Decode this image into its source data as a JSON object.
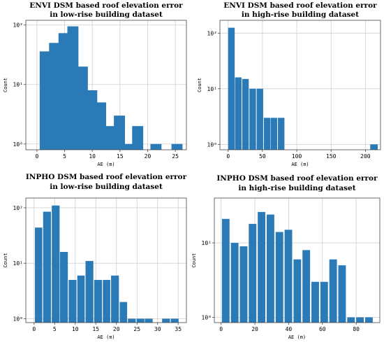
{
  "chart_data": [
    {
      "type": "bar",
      "title": [
        "ENVI DSM based roof elevation error",
        "in low-rise building dataset"
      ],
      "xlabel": "AE (m)",
      "ylabel": "Count",
      "yscale": "log",
      "grid": true,
      "xlim": [
        -2,
        27
      ],
      "ylim": [
        0.8,
        120
      ],
      "xticks": [
        0,
        5,
        10,
        15,
        20,
        25
      ],
      "yticks": [
        {
          "v": 1,
          "label": "10⁰"
        },
        {
          "v": 10,
          "label": "10¹"
        },
        {
          "v": 100,
          "label": "10²"
        }
      ],
      "bins": [
        [
          0.5,
          2.5
        ],
        [
          2.2,
          4.2
        ],
        [
          3.9,
          5.9
        ],
        [
          5.5,
          7.5
        ],
        [
          7.2,
          9.2
        ],
        [
          8.9,
          10.9
        ],
        [
          10.5,
          12.5
        ],
        [
          12.2,
          14.2
        ],
        [
          13.9,
          15.9
        ],
        [
          15.5,
          17.5
        ],
        [
          17.2,
          19.2
        ],
        [
          20.5,
          22.5
        ],
        [
          24.3,
          26.3
        ]
      ],
      "values": [
        36,
        50,
        73,
        95,
        20,
        8,
        5,
        2,
        3,
        1,
        2,
        1,
        1
      ]
    },
    {
      "type": "bar",
      "title": [
        "ENVI DSM based roof elevation error",
        "in high-rise building dataset"
      ],
      "xlabel": "AE (m)",
      "ylabel": "Count",
      "yscale": "log",
      "grid": true,
      "xlim": [
        -12,
        222
      ],
      "ylim": [
        0.8,
        170
      ],
      "xticks": [
        0,
        50,
        100,
        150,
        200
      ],
      "yticks": [
        {
          "v": 1,
          "label": "10⁰"
        },
        {
          "v": 10,
          "label": "10¹"
        },
        {
          "v": 100,
          "label": "10²"
        }
      ],
      "bins": [
        [
          0,
          9.5
        ],
        [
          10,
          19.5
        ],
        [
          20.5,
          30
        ],
        [
          31,
          40.5
        ],
        [
          41.5,
          51
        ],
        [
          52,
          61.5
        ],
        [
          62,
          71.5
        ],
        [
          72.5,
          82
        ],
        [
          207,
          218
        ]
      ],
      "values": [
        125,
        16,
        15,
        10,
        10,
        3,
        3,
        3,
        1
      ]
    },
    {
      "type": "bar",
      "title": [
        "INPHO DSM based roof elevation error",
        "in low-rise building dataset"
      ],
      "xlabel": "AE (m)",
      "ylabel": "Count",
      "yscale": "log",
      "grid": true,
      "xlim": [
        -2,
        37
      ],
      "ylim": [
        0.85,
        150
      ],
      "xticks": [
        0,
        5,
        10,
        15,
        20,
        25,
        30,
        35
      ],
      "yticks": [
        {
          "v": 1,
          "label": "10⁰"
        },
        {
          "v": 10,
          "label": "10¹"
        },
        {
          "v": 100,
          "label": "10²"
        }
      ],
      "bins": [
        [
          0.2,
          2
        ],
        [
          2.2,
          4.1
        ],
        [
          4.3,
          6.2
        ],
        [
          6.3,
          8.2
        ],
        [
          8.4,
          10.3
        ],
        [
          10.5,
          12.3
        ],
        [
          12.5,
          14.4
        ],
        [
          14.6,
          16.5
        ],
        [
          16.7,
          18.5
        ],
        [
          18.7,
          20.6
        ],
        [
          20.8,
          22.6
        ],
        [
          22.8,
          24.7
        ],
        [
          24.9,
          26.8
        ],
        [
          26.9,
          28.8
        ],
        [
          31.1,
          33
        ],
        [
          33.2,
          35.1
        ]
      ],
      "values": [
        44,
        85,
        110,
        16,
        5,
        6,
        11,
        5,
        5,
        6,
        2,
        1,
        1,
        1,
        1,
        1
      ]
    },
    {
      "type": "bar",
      "title": [
        "INPHO DSM based roof elevation error",
        "in high-rise building dataset"
      ],
      "xlabel": "AE (m)",
      "ylabel": "Count",
      "yscale": "log",
      "grid": true,
      "xlim": [
        -4,
        94
      ],
      "ylim": [
        0.85,
        40
      ],
      "xticks": [
        0,
        20,
        40,
        60,
        80
      ],
      "yticks": [
        {
          "v": 1,
          "label": "10⁰"
        },
        {
          "v": 10,
          "label": "10¹"
        }
      ],
      "bins": [
        [
          0.5,
          5
        ],
        [
          5.8,
          10.3
        ],
        [
          11.1,
          15.6
        ],
        [
          16.4,
          20.9
        ],
        [
          21.7,
          26.2
        ],
        [
          27,
          31.5
        ],
        [
          32.3,
          36.8
        ],
        [
          37.6,
          42.1
        ],
        [
          42.9,
          47.4
        ],
        [
          48.2,
          52.7
        ],
        [
          53.5,
          58
        ],
        [
          58.8,
          63.3
        ],
        [
          64.1,
          68.6
        ],
        [
          69.4,
          73.9
        ],
        [
          74.7,
          79.2
        ],
        [
          80,
          84.5
        ],
        [
          85.3,
          89.8
        ]
      ],
      "values": [
        21,
        10,
        9,
        18,
        26,
        24,
        14,
        15,
        6,
        8,
        3,
        3,
        6,
        5,
        1,
        1,
        1
      ]
    }
  ]
}
